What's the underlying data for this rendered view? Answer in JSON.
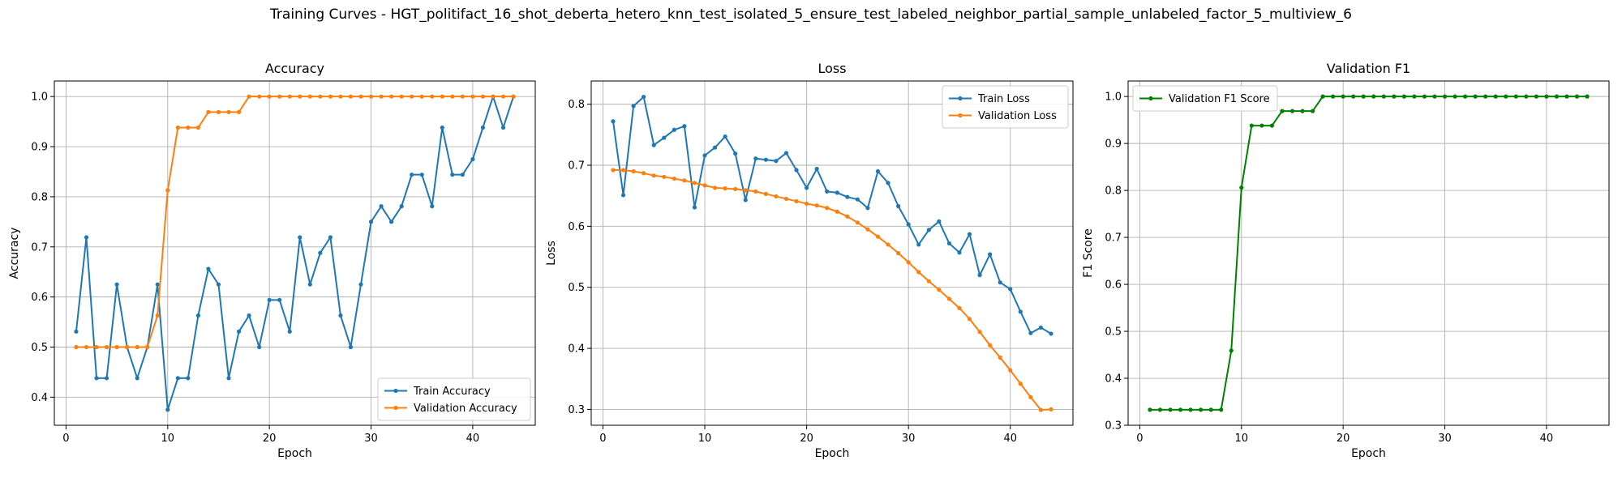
{
  "figure_title": "Training Curves - HGT_politifact_16_shot_deberta_hetero_knn_test_isolated_5_ensure_test_labeled_neighbor_partial_sample_unlabeled_factor_5_multiview_6",
  "colors": {
    "blue": "#1f77b4",
    "orange": "#ff7f0e",
    "green": "#008000"
  },
  "chart_data": [
    {
      "type": "line",
      "title": "Accuracy",
      "xlabel": "Epoch",
      "ylabel": "Accuracy",
      "xlim": [
        -1.15,
        46.15
      ],
      "ylim": [
        0.344,
        1.031
      ],
      "xticks": [
        0,
        10,
        20,
        30,
        40
      ],
      "yticks": [
        0.4,
        0.5,
        0.6,
        0.7,
        0.8,
        0.9,
        1.0
      ],
      "ytick_labels": [
        "0.4",
        "0.5",
        "0.6",
        "0.7",
        "0.8",
        "0.9",
        "1.0"
      ],
      "grid": true,
      "legend_loc": "lower-right",
      "series": [
        {
          "name": "Train Accuracy",
          "color": "#1f77b4",
          "x": [
            1,
            2,
            3,
            4,
            5,
            6,
            7,
            8,
            9,
            10,
            11,
            12,
            13,
            14,
            15,
            16,
            17,
            18,
            19,
            20,
            21,
            22,
            23,
            24,
            25,
            26,
            27,
            28,
            29,
            30,
            31,
            32,
            33,
            34,
            35,
            36,
            37,
            38,
            39,
            40,
            41,
            42,
            43,
            44
          ],
          "y": [
            0.531,
            0.719,
            0.438,
            0.438,
            0.625,
            0.5,
            0.438,
            0.5,
            0.625,
            0.375,
            0.438,
            0.438,
            0.563,
            0.656,
            0.625,
            0.438,
            0.531,
            0.563,
            0.5,
            0.594,
            0.594,
            0.531,
            0.719,
            0.625,
            0.688,
            0.719,
            0.563,
            0.5,
            0.625,
            0.75,
            0.781,
            0.75,
            0.781,
            0.844,
            0.844,
            0.781,
            0.938,
            0.844,
            0.844,
            0.875,
            0.938,
            1.0,
            0.938,
            1.0
          ]
        },
        {
          "name": "Validation Accuracy",
          "color": "#ff7f0e",
          "x": [
            1,
            2,
            3,
            4,
            5,
            6,
            7,
            8,
            9,
            10,
            11,
            12,
            13,
            14,
            15,
            16,
            17,
            18,
            19,
            20,
            21,
            22,
            23,
            24,
            25,
            26,
            27,
            28,
            29,
            30,
            31,
            32,
            33,
            34,
            35,
            36,
            37,
            38,
            39,
            40,
            41,
            42,
            43,
            44
          ],
          "y": [
            0.5,
            0.5,
            0.5,
            0.5,
            0.5,
            0.5,
            0.5,
            0.5,
            0.563,
            0.813,
            0.938,
            0.938,
            0.938,
            0.969,
            0.969,
            0.969,
            0.969,
            1.0,
            1.0,
            1.0,
            1.0,
            1.0,
            1.0,
            1.0,
            1.0,
            1.0,
            1.0,
            1.0,
            1.0,
            1.0,
            1.0,
            1.0,
            1.0,
            1.0,
            1.0,
            1.0,
            1.0,
            1.0,
            1.0,
            1.0,
            1.0,
            1.0,
            1.0,
            1.0
          ]
        }
      ]
    },
    {
      "type": "line",
      "title": "Loss",
      "xlabel": "Epoch",
      "ylabel": "Loss",
      "xlim": [
        -1.15,
        46.15
      ],
      "ylim": [
        0.274,
        0.838
      ],
      "xticks": [
        0,
        10,
        20,
        30,
        40
      ],
      "yticks": [
        0.3,
        0.4,
        0.5,
        0.6,
        0.7,
        0.8
      ],
      "ytick_labels": [
        "0.3",
        "0.4",
        "0.5",
        "0.6",
        "0.7",
        "0.8"
      ],
      "grid": true,
      "legend_loc": "upper-right",
      "series": [
        {
          "name": "Train Loss",
          "color": "#1f77b4",
          "x": [
            1,
            2,
            3,
            4,
            5,
            6,
            7,
            8,
            9,
            10,
            11,
            12,
            13,
            14,
            15,
            16,
            17,
            18,
            19,
            20,
            21,
            22,
            23,
            24,
            25,
            26,
            27,
            28,
            29,
            30,
            31,
            32,
            33,
            34,
            35,
            36,
            37,
            38,
            39,
            40,
            41,
            42,
            43,
            44
          ],
          "y": [
            0.772,
            0.651,
            0.797,
            0.812,
            0.733,
            0.745,
            0.758,
            0.764,
            0.631,
            0.716,
            0.729,
            0.747,
            0.719,
            0.643,
            0.711,
            0.709,
            0.707,
            0.72,
            0.692,
            0.663,
            0.694,
            0.657,
            0.655,
            0.648,
            0.644,
            0.63,
            0.69,
            0.671,
            0.633,
            0.603,
            0.57,
            0.594,
            0.608,
            0.572,
            0.557,
            0.587,
            0.52,
            0.554,
            0.508,
            0.497,
            0.46,
            0.425,
            0.434,
            0.424
          ]
        },
        {
          "name": "Validation Loss",
          "color": "#ff7f0e",
          "x": [
            1,
            2,
            3,
            4,
            5,
            6,
            7,
            8,
            9,
            10,
            11,
            12,
            13,
            14,
            15,
            16,
            17,
            18,
            19,
            20,
            21,
            22,
            23,
            24,
            25,
            26,
            27,
            28,
            29,
            30,
            31,
            32,
            33,
            34,
            35,
            36,
            37,
            38,
            39,
            40,
            41,
            42,
            43,
            44
          ],
          "y": [
            0.692,
            0.692,
            0.69,
            0.687,
            0.683,
            0.681,
            0.678,
            0.675,
            0.671,
            0.667,
            0.663,
            0.662,
            0.661,
            0.659,
            0.657,
            0.653,
            0.649,
            0.645,
            0.641,
            0.637,
            0.634,
            0.63,
            0.624,
            0.616,
            0.606,
            0.595,
            0.583,
            0.57,
            0.556,
            0.541,
            0.525,
            0.51,
            0.496,
            0.481,
            0.466,
            0.448,
            0.427,
            0.405,
            0.385,
            0.364,
            0.342,
            0.32,
            0.299,
            0.3
          ]
        }
      ]
    },
    {
      "type": "line",
      "title": "Validation F1",
      "xlabel": "Epoch",
      "ylabel": "F1 Score",
      "xlim": [
        -1.15,
        46.15
      ],
      "ylim": [
        0.3,
        1.033
      ],
      "xticks": [
        0,
        10,
        20,
        30,
        40
      ],
      "yticks": [
        0.3,
        0.4,
        0.5,
        0.6,
        0.7,
        0.8,
        0.9,
        1.0
      ],
      "ytick_labels": [
        "0.3",
        "0.4",
        "0.5",
        "0.6",
        "0.7",
        "0.8",
        "0.9",
        "1.0"
      ],
      "grid": true,
      "legend_loc": "upper-left",
      "series": [
        {
          "name": "Validation F1 Score",
          "color": "#008000",
          "x": [
            1,
            2,
            3,
            4,
            5,
            6,
            7,
            8,
            9,
            10,
            11,
            12,
            13,
            14,
            15,
            16,
            17,
            18,
            19,
            20,
            21,
            22,
            23,
            24,
            25,
            26,
            27,
            28,
            29,
            30,
            31,
            32,
            33,
            34,
            35,
            36,
            37,
            38,
            39,
            40,
            41,
            42,
            43,
            44
          ],
          "y": [
            0.333,
            0.333,
            0.333,
            0.333,
            0.333,
            0.333,
            0.333,
            0.333,
            0.459,
            0.806,
            0.938,
            0.938,
            0.938,
            0.969,
            0.969,
            0.969,
            0.969,
            1.0,
            1.0,
            1.0,
            1.0,
            1.0,
            1.0,
            1.0,
            1.0,
            1.0,
            1.0,
            1.0,
            1.0,
            1.0,
            1.0,
            1.0,
            1.0,
            1.0,
            1.0,
            1.0,
            1.0,
            1.0,
            1.0,
            1.0,
            1.0,
            1.0,
            1.0,
            1.0
          ]
        }
      ]
    }
  ]
}
